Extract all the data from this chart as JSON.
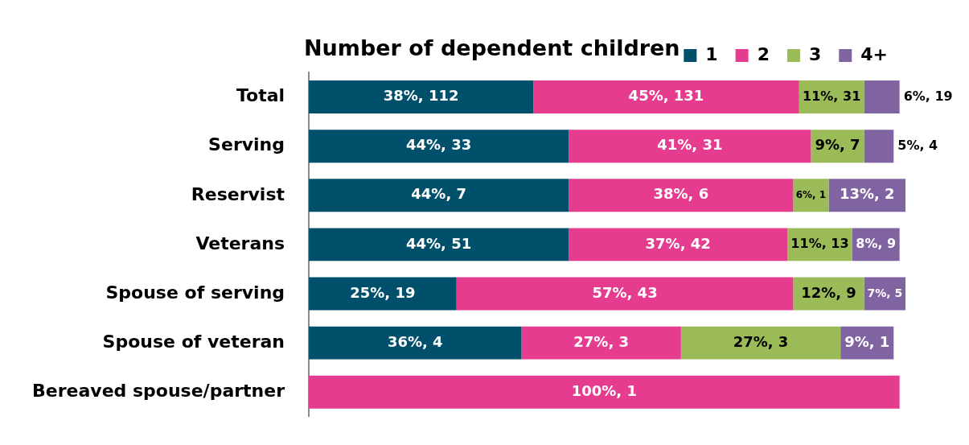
{
  "chart_data": {
    "type": "bar",
    "orientation": "horizontal",
    "stacked": true,
    "title": "Number of dependent children",
    "legend": "top right",
    "grid": false,
    "categories": [
      "Total",
      "Serving",
      "Reservist",
      "Veterans",
      "Spouse of serving",
      "Spouse of veteran",
      "Bereaved spouse/partner"
    ],
    "series": [
      {
        "name": "1",
        "color": "#00506b",
        "values": [
          38,
          44,
          44,
          44,
          25,
          36,
          null
        ],
        "value_labels": [
          "38%, 112",
          "44%, 33",
          "44%, 7",
          "44%, 51",
          "25%, 19",
          "36%, 4",
          null
        ]
      },
      {
        "name": "2",
        "color": "#e63c8f",
        "values": [
          45,
          41,
          38,
          37,
          57,
          27,
          100
        ],
        "value_labels": [
          "45%, 131",
          "41%, 31",
          "38%, 6",
          "37%, 42",
          "57%, 43",
          "27%, 3",
          "100%, 1"
        ]
      },
      {
        "name": "3",
        "color": "#9bbb59",
        "values": [
          11,
          9,
          6,
          11,
          12,
          27,
          null
        ],
        "value_labels": [
          "11%, 31",
          "9%, 7",
          "6%, 1",
          "11%, 13",
          "12%, 9",
          "27%, 3",
          null
        ]
      },
      {
        "name": "4+",
        "color": "#8064a2",
        "values": [
          6,
          5,
          13,
          8,
          7,
          9,
          null
        ],
        "value_labels": [
          "6%, 19",
          "5%, 4",
          "13%, 2",
          "8%, 9",
          "7%, 5",
          "9%, 1",
          null
        ]
      }
    ]
  }
}
